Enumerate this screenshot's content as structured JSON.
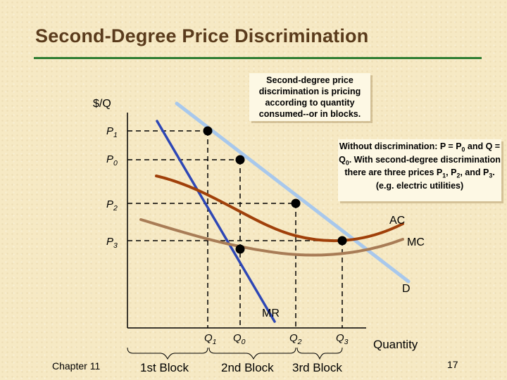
{
  "title": "Second-Degree Price Discrimination",
  "callout_definition": "Second-degree price discrimination is pricing according to quantity consumed--or in blocks.",
  "callout_example": "Without discrimination: P = P0 and Q = Q0. With second-degree discrimination there are three prices P1, P2, and P3. (e.g. electric utilities)",
  "axes": {
    "y_label": "$/Q",
    "x_label": "Quantity"
  },
  "price_labels": [
    "P1",
    "P0",
    "P2",
    "P3"
  ],
  "quantity_labels": [
    "Q1",
    "Q0",
    "Q2",
    "Q3"
  ],
  "curve_labels": {
    "ac": "AC",
    "mc": "MC",
    "demand": "D",
    "mr": "MR"
  },
  "blocks": {
    "first": "1st Block",
    "second": "2nd Block",
    "third": "3rd Block"
  },
  "footer": {
    "chapter": "Chapter 11",
    "page": "17"
  },
  "colors": {
    "title": "#5a3b1c",
    "title_rule": "#2e7d32",
    "demand": "#a8c8ec",
    "mr": "#2e47b5",
    "ac": "#a0400a",
    "mc": "#a87c56",
    "points": "#000000"
  }
}
